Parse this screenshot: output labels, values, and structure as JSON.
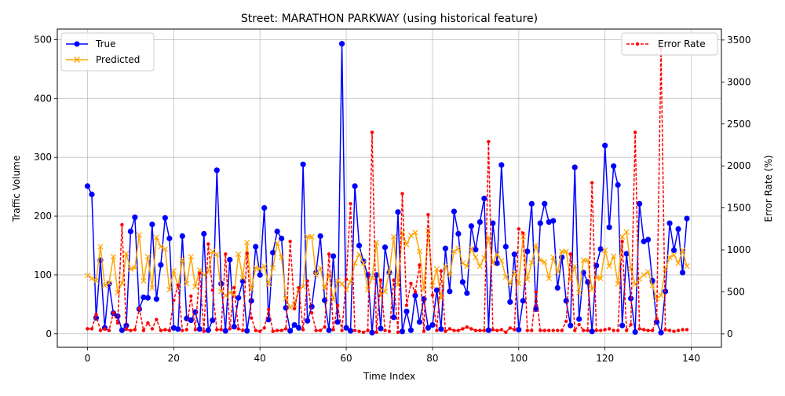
{
  "chart_data": {
    "type": "line",
    "title": "Street: MARATHON PARKWAY (using historical feature)",
    "xlabel": "Time Index",
    "ylabel": "Traffic Volume",
    "y2label": "Error Rate (%)",
    "xlim": [
      -7,
      147
    ],
    "ylim": [
      -23,
      518
    ],
    "y2lim": [
      -160,
      3630
    ],
    "xticks": [
      0,
      20,
      40,
      60,
      80,
      100,
      120,
      140
    ],
    "yticks": [
      0,
      100,
      200,
      300,
      400,
      500
    ],
    "y2ticks": [
      0,
      500,
      1000,
      1500,
      2000,
      2500,
      3000,
      3500
    ],
    "grid": true,
    "legend_left": "top-left",
    "legend_right": "top-right",
    "series": [
      {
        "name": "True",
        "axis": "left",
        "color": "#0000ff",
        "marker": "circle",
        "linestyle": "solid",
        "values": [
          251,
          237,
          27,
          125,
          10,
          85,
          35,
          30,
          6,
          14,
          174,
          198,
          42,
          62,
          61,
          186,
          59,
          117,
          197,
          162,
          10,
          8,
          166,
          26,
          23,
          37,
          8,
          170,
          6,
          23,
          278,
          85,
          5,
          126,
          12,
          61,
          90,
          5,
          56,
          148,
          100,
          214,
          24,
          138,
          174,
          162,
          44,
          5,
          15,
          10,
          288,
          22,
          46,
          104,
          166,
          57,
          6,
          132,
          20,
          493,
          10,
          5,
          251,
          150,
          123,
          100,
          2,
          100,
          9,
          147,
          104,
          28,
          207,
          4,
          38,
          6,
          65,
          20,
          59,
          10,
          15,
          74,
          8,
          145,
          72,
          208,
          170,
          88,
          69,
          183,
          143,
          190,
          230,
          6,
          188,
          120,
          287,
          148,
          54,
          135,
          7,
          56,
          140,
          221,
          42,
          188,
          221,
          190,
          192,
          78,
          130,
          56,
          14,
          283,
          25,
          104,
          88,
          4,
          116,
          144,
          320,
          181,
          285,
          253,
          14,
          136,
          60,
          3,
          221,
          157,
          160,
          90,
          20,
          2,
          72,
          188,
          142,
          178,
          104,
          196
        ]
      },
      {
        "name": "Predicted",
        "axis": "left",
        "color": "#ffa500",
        "marker": "x",
        "linestyle": "solid",
        "values": [
          99,
          94,
          90,
          148,
          82,
          86,
          131,
          70,
          86,
          136,
          110,
          112,
          168,
          90,
          131,
          78,
          164,
          148,
          144,
          75,
          107,
          80,
          126,
          85,
          131,
          80,
          108,
          100,
          105,
          140,
          135,
          72,
          65,
          70,
          68,
          135,
          95,
          155,
          76,
          112,
          110,
          115,
          84,
          112,
          154,
          130,
          60,
          45,
          50,
          75,
          80,
          165,
          165,
          100,
          112,
          78,
          100,
          58,
          90,
          85,
          75,
          88,
          120,
          135,
          120,
          75,
          95,
          155,
          65,
          72,
          105,
          165,
          83,
          172,
          152,
          167,
          172,
          140,
          75,
          175,
          82,
          110,
          60,
          115,
          100,
          140,
          145,
          120,
          115,
          145,
          130,
          115,
          129,
          164,
          120,
          135,
          124,
          97,
          85,
          104,
          85,
          165,
          92,
          121,
          150,
          125,
          122,
          94,
          130,
          105,
          140,
          140,
          92,
          115,
          70,
          125,
          125,
          75,
          96,
          94,
          142,
          115,
          132,
          85,
          165,
          173,
          110,
          84,
          93,
          100,
          105,
          82,
          60,
          65,
          110,
          130,
          134,
          120,
          142,
          115
        ]
      },
      {
        "name": "Error Rate",
        "axis": "right",
        "color": "#ff0000",
        "marker": "dot",
        "linestyle": "dashed",
        "values": [
          60,
          60,
          230,
          40,
          60,
          40,
          250,
          130,
          1300,
          55,
          40,
          50,
          300,
          40,
          130,
          60,
          170,
          40,
          50,
          40,
          400,
          580,
          40,
          50,
          450,
          50,
          720,
          30,
          1070,
          520,
          50,
          50,
          950,
          60,
          550,
          60,
          40,
          960,
          190,
          40,
          30,
          70,
          290,
          30,
          40,
          40,
          60,
          1100,
          300,
          550,
          50,
          630,
          250,
          40,
          40,
          80,
          950,
          50,
          340,
          40,
          650,
          1550,
          40,
          30,
          20,
          40,
          2400,
          20,
          640,
          40,
          30,
          640,
          20,
          1670,
          340,
          600,
          500,
          820,
          30,
          1420,
          460,
          40,
          750,
          30,
          60,
          40,
          40,
          60,
          80,
          60,
          40,
          40,
          40,
          2290,
          50,
          40,
          50,
          20,
          70,
          50,
          1250,
          1200,
          40,
          40,
          500,
          40,
          40,
          40,
          40,
          40,
          40,
          150,
          950,
          40,
          110,
          40,
          40,
          1800,
          40,
          40,
          50,
          60,
          40,
          40,
          1100,
          40,
          110,
          2400,
          60,
          50,
          40,
          40,
          180,
          3400,
          50,
          40,
          30,
          40,
          50,
          50
        ]
      }
    ]
  }
}
